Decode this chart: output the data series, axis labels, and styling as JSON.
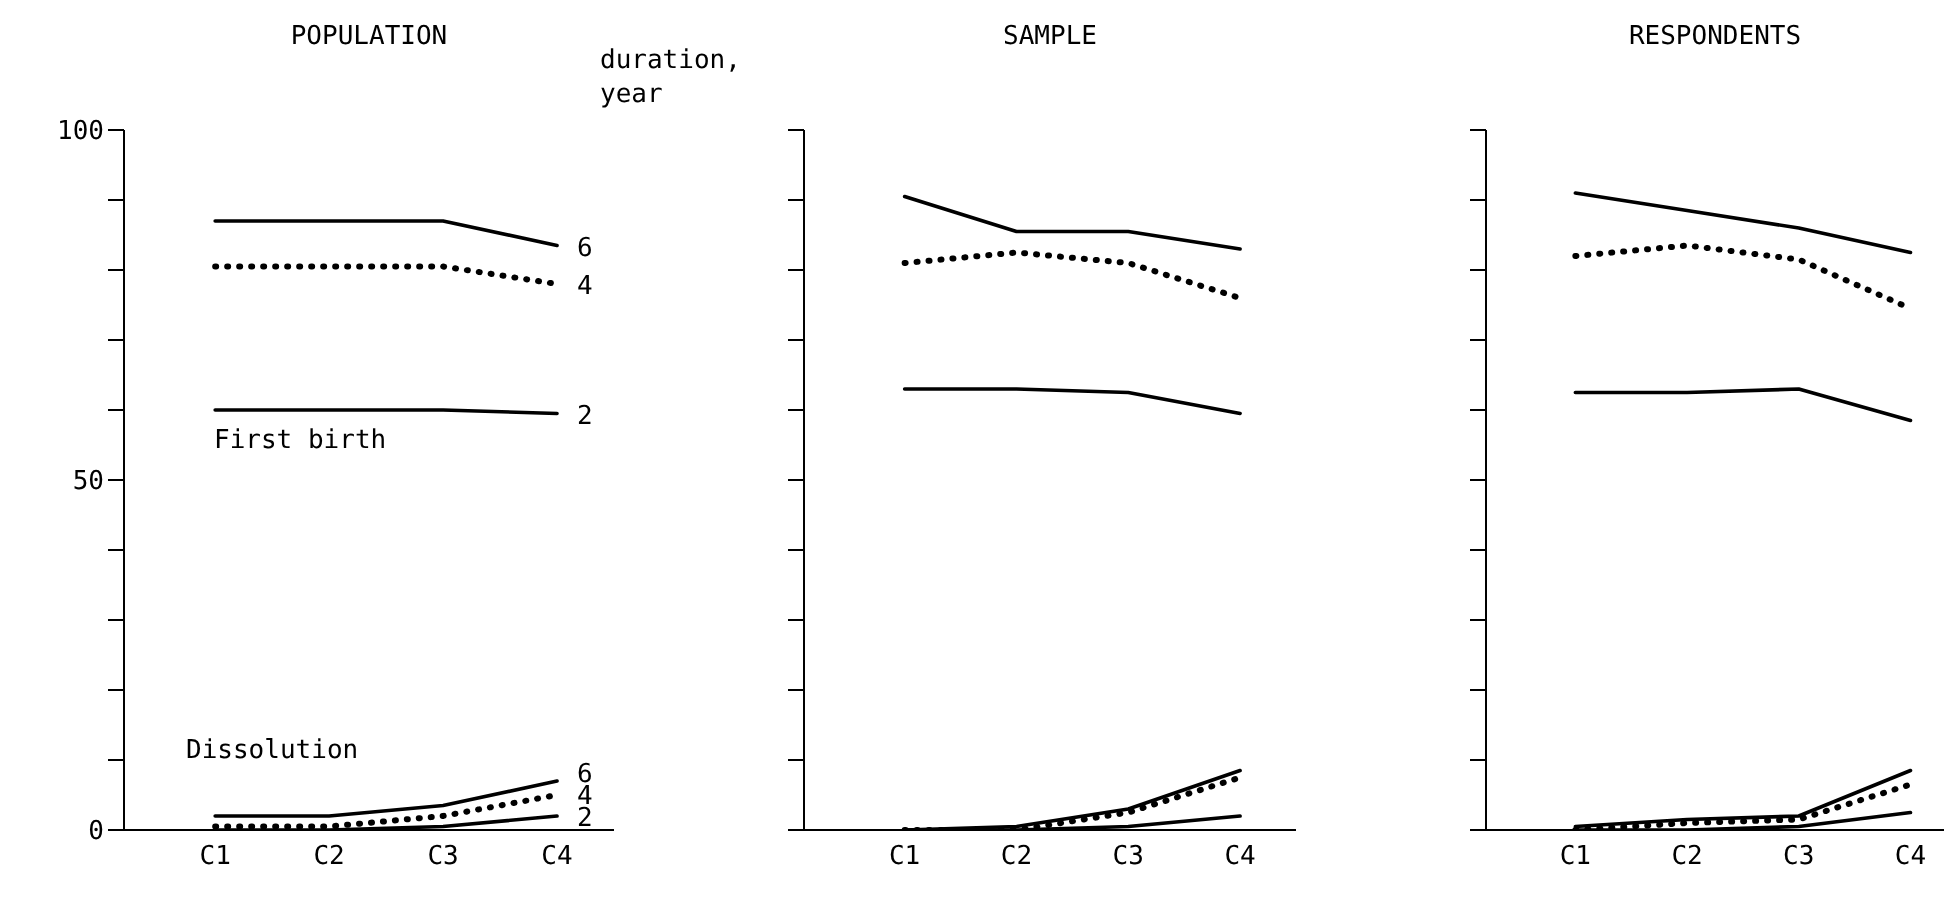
{
  "chart_data": [
    {
      "type": "line",
      "title": "POPULATION",
      "legend_title": "duration, year",
      "annotations": [
        "First birth",
        "Dissolution"
      ],
      "categories": [
        "C1",
        "C2",
        "C3",
        "C4"
      ],
      "ylim": [
        0,
        100
      ],
      "yticks": [
        0,
        {
          "value": 10,
          "label": null
        },
        {
          "value": 20,
          "label": null
        },
        {
          "value": 30,
          "label": null
        },
        {
          "value": 40,
          "label": null
        },
        50,
        {
          "value": 60,
          "label": null
        },
        {
          "value": 70,
          "label": null
        },
        {
          "value": 80,
          "label": null
        },
        {
          "value": 90,
          "label": null
        },
        100
      ],
      "marker": "none",
      "series": [
        {
          "name": "6",
          "color": "#000000",
          "line_style": "solid",
          "values": [
            87,
            87,
            87,
            83.5
          ]
        },
        {
          "name": "4",
          "color": "#000000",
          "line_style": "dotted",
          "values": [
            80.5,
            80.5,
            80.5,
            78
          ]
        },
        {
          "name": "2",
          "color": "#000000",
          "line_style": "solid",
          "values": [
            60,
            60,
            60,
            59.5
          ]
        },
        {
          "name": "6",
          "color": "#000000",
          "line_style": "solid",
          "values": [
            2,
            2,
            3.5,
            7
          ]
        },
        {
          "name": "4",
          "color": "#000000",
          "line_style": "dotted",
          "values": [
            0.5,
            0.5,
            2,
            5
          ]
        },
        {
          "name": "2",
          "color": "#000000",
          "line_style": "solid",
          "values": [
            0,
            0,
            0.5,
            2
          ]
        }
      ]
    },
    {
      "type": "line",
      "title": "SAMPLE",
      "categories": [
        "C1",
        "C2",
        "C3",
        "C4"
      ],
      "ylim": [
        0,
        100
      ],
      "yticks": [
        {
          "value": 0,
          "label": null
        },
        {
          "value": 10,
          "label": null
        },
        {
          "value": 20,
          "label": null
        },
        {
          "value": 30,
          "label": null
        },
        {
          "value": 40,
          "label": null
        },
        {
          "value": 50,
          "label": null
        },
        {
          "value": 60,
          "label": null
        },
        {
          "value": 70,
          "label": null
        },
        {
          "value": 80,
          "label": null
        },
        {
          "value": 90,
          "label": null
        },
        {
          "value": 100,
          "label": null
        }
      ],
      "tick_labels": "x",
      "marker": "none",
      "series": [
        {
          "color": "#000000",
          "line_style": "solid",
          "values": [
            90.5,
            85.5,
            85.5,
            83
          ]
        },
        {
          "color": "#000000",
          "line_style": "dotted",
          "values": [
            81,
            82.5,
            81,
            76
          ]
        },
        {
          "color": "#000000",
          "line_style": "solid",
          "values": [
            63,
            63,
            62.5,
            59.5
          ]
        },
        {
          "color": "#000000",
          "line_style": "solid",
          "values": [
            0,
            0.5,
            3,
            8.5
          ]
        },
        {
          "color": "#000000",
          "line_style": "dotted",
          "values": [
            0,
            0,
            2.5,
            7.5
          ]
        },
        {
          "color": "#000000",
          "line_style": "solid",
          "values": [
            0,
            0,
            0.5,
            2
          ]
        }
      ]
    },
    {
      "type": "line",
      "title": "RESPONDENTS",
      "categories": [
        "C1",
        "C2",
        "C3",
        "C4"
      ],
      "ylim": [
        0,
        100
      ],
      "yticks": [
        {
          "value": 0,
          "label": null
        },
        {
          "value": 10,
          "label": null
        },
        {
          "value": 20,
          "label": null
        },
        {
          "value": 30,
          "label": null
        },
        {
          "value": 40,
          "label": null
        },
        {
          "value": 50,
          "label": null
        },
        {
          "value": 60,
          "label": null
        },
        {
          "value": 70,
          "label": null
        },
        {
          "value": 80,
          "label": null
        },
        {
          "value": 90,
          "label": null
        },
        {
          "value": 100,
          "label": null
        }
      ],
      "tick_labels": "x",
      "marker": "none",
      "series": [
        {
          "color": "#000000",
          "line_style": "solid",
          "values": [
            91,
            88.5,
            86,
            82.5
          ]
        },
        {
          "color": "#000000",
          "line_style": "dotted",
          "values": [
            82,
            83.5,
            81.5,
            74.5
          ]
        },
        {
          "color": "#000000",
          "line_style": "solid",
          "values": [
            62.5,
            62.5,
            63,
            58.5
          ]
        },
        {
          "color": "#000000",
          "line_style": "solid",
          "values": [
            0.5,
            1.5,
            2,
            8.5
          ]
        },
        {
          "color": "#000000",
          "line_style": "dotted",
          "values": [
            0,
            1,
            1.5,
            6.5
          ]
        },
        {
          "color": "#000000",
          "line_style": "solid",
          "values": [
            0,
            0,
            0.5,
            2.5
          ]
        }
      ]
    }
  ]
}
